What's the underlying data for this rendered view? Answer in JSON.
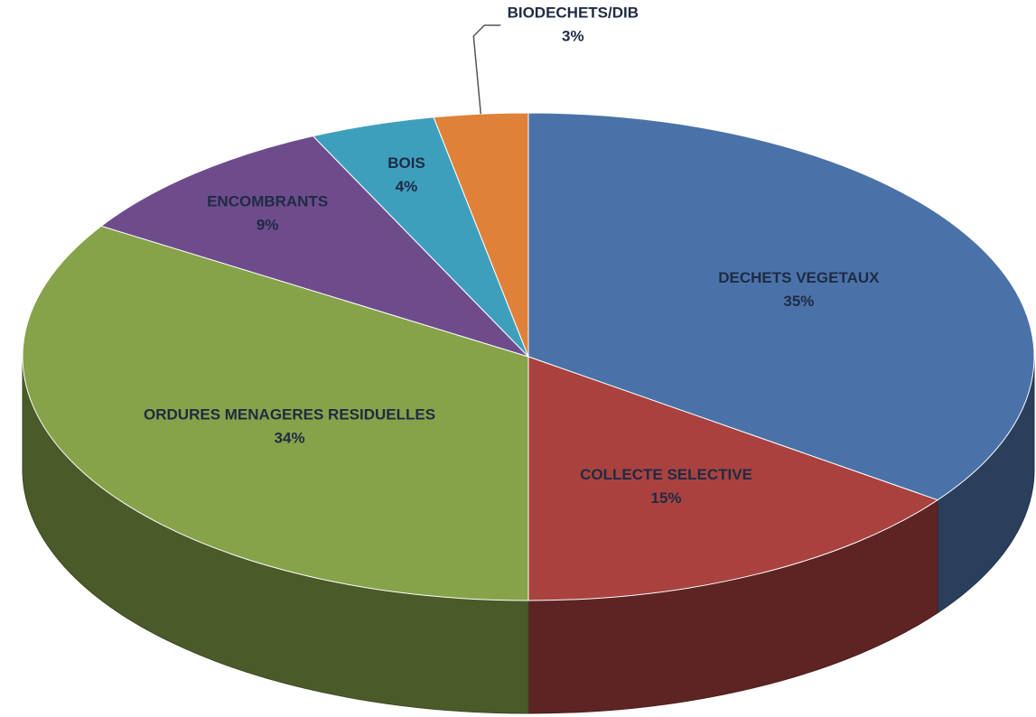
{
  "chart_data": {
    "type": "pie",
    "categories": [
      "DECHETS VEGETAUX",
      "COLLECTE SELECTIVE",
      "ORDURES MENAGERES RESIDUELLES",
      "ENCOMBRANTS",
      "BOIS",
      "BIODECHETS/DIB"
    ],
    "values": [
      35,
      15,
      34,
      9,
      4,
      3
    ],
    "value_labels": [
      "35%",
      "15%",
      "34%",
      "9%",
      "4%",
      "3%"
    ],
    "colors": [
      "#4a72a8",
      "#a9423f",
      "#86a34a",
      "#6e4c8c",
      "#3e9fbd",
      "#e0813a"
    ],
    "three_d": true
  }
}
